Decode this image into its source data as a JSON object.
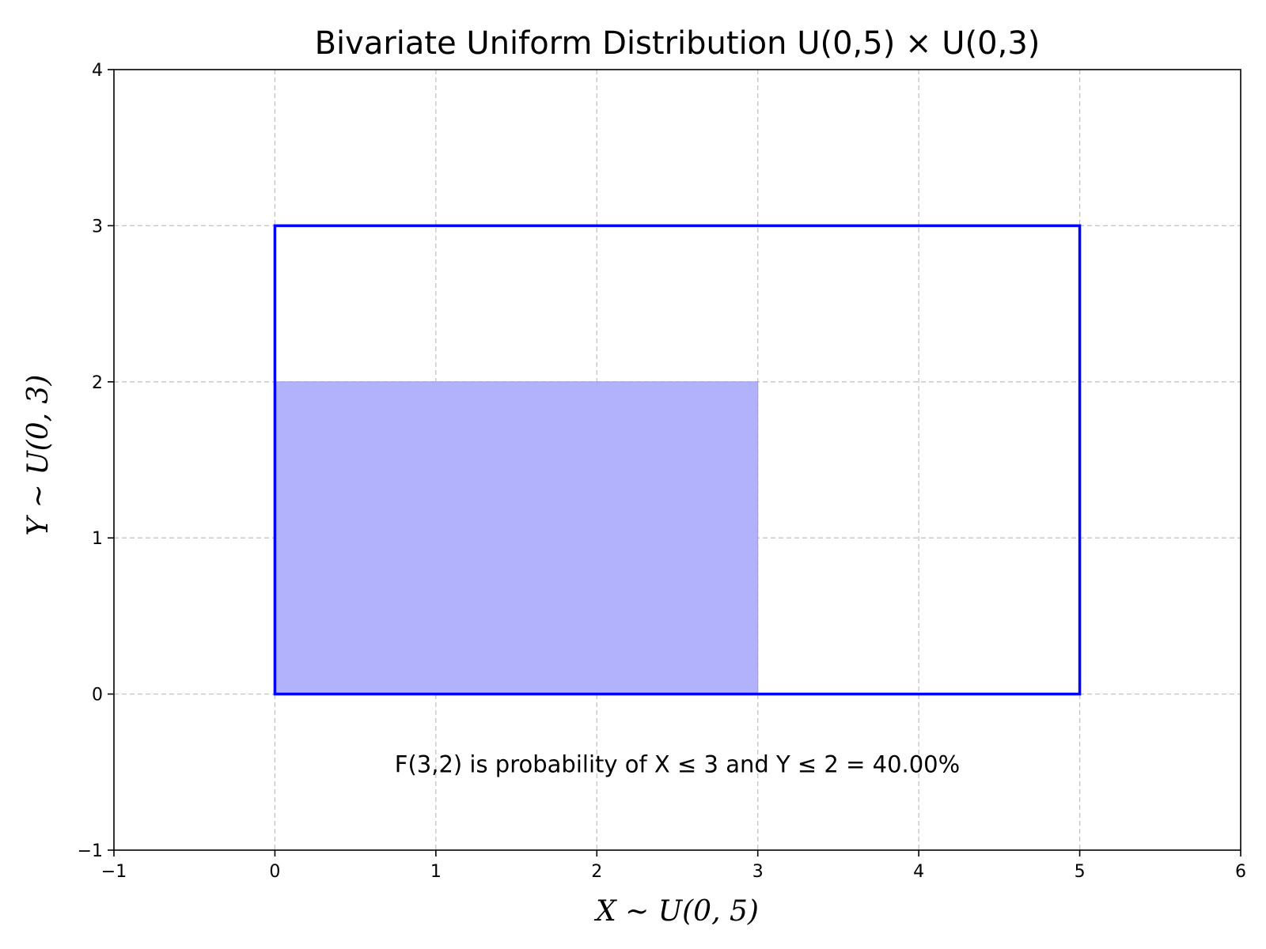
{
  "chart_data": {
    "type": "area",
    "title": "Bivariate Uniform Distribution U(0,5) × U(0,3)",
    "xlabel": "X ~ U(0, 5)",
    "ylabel": "Y ~ U(0, 3)",
    "xlim": [
      -1,
      6
    ],
    "ylim": [
      -1,
      4
    ],
    "xticks": [
      -1,
      0,
      1,
      2,
      3,
      4,
      5,
      6
    ],
    "yticks": [
      -1,
      0,
      1,
      2,
      3,
      4
    ],
    "xtick_labels": [
      "−1",
      "0",
      "1",
      "2",
      "3",
      "4",
      "5",
      "6"
    ],
    "ytick_labels": [
      "−1",
      "0",
      "1",
      "2",
      "3",
      "4"
    ],
    "grid": true,
    "support": {
      "x": [
        0,
        5
      ],
      "y": [
        0,
        3
      ],
      "color": "#0000ff"
    },
    "shaded_region": {
      "x": [
        0,
        3
      ],
      "y": [
        0,
        2
      ],
      "color": "#b2b2fc"
    },
    "annotation": {
      "text": "F(3,2) is probability of X ≤ 3 and Y ≤ 2 = 40.00%",
      "x": 2.5,
      "y": -0.45
    }
  }
}
